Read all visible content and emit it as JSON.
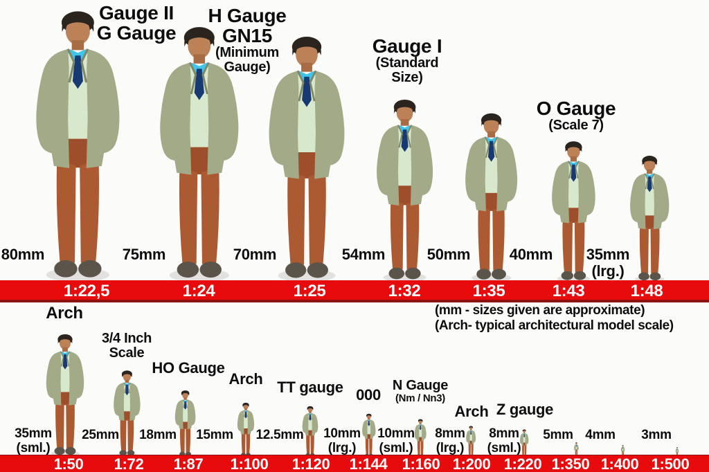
{
  "annotation": {
    "line1": "(mm - sizes given are approximate)",
    "line2": "(Arch- typical architectural model scale)"
  },
  "colors": {
    "bar_red": "#e70b0d",
    "bar_red_dark": "#8f1212",
    "figure": {
      "skin": "#bd8157",
      "skin_shade": "#a76c44",
      "hair": "#2b241e",
      "shirt": "#41c4ea",
      "tie": "#173a72",
      "vest": "#d8e8cd",
      "jacket": "#a3aa87",
      "jacket_shade": "#7f8766",
      "trousers": "#ac5a31",
      "trousers_dark": "#9d4e2b",
      "shoes": "#5a544a"
    }
  },
  "rows": [
    {
      "name": "large scales",
      "figures": [
        {
          "gauge_label": [
            "Gauge II",
            "G Gauge"
          ],
          "size_label": "80mm",
          "ratio": "1:22,5"
        },
        {
          "gauge_label": [
            "H Gauge",
            "GN15"
          ],
          "gauge_sub": [
            "(Minimum",
            "Gauge)"
          ],
          "size_label": "75mm",
          "ratio": "1:24"
        },
        {
          "size_label": "70mm",
          "ratio": "1:25"
        },
        {
          "gauge_label": [
            "Gauge I"
          ],
          "gauge_sub": [
            "(Standard",
            "Size)"
          ],
          "size_label": "54mm",
          "ratio": "1:32"
        },
        {
          "size_label": "50mm",
          "ratio": "1:35"
        },
        {
          "gauge_label": [
            "O Gauge"
          ],
          "gauge_sub": [
            "(Scale 7)"
          ],
          "size_label": "40mm",
          "ratio": "1:43"
        },
        {
          "size_label": "35mm",
          "size_note": "(lrg.)",
          "ratio": "1:48"
        }
      ]
    },
    {
      "name": "small scales",
      "figures": [
        {
          "gauge_label": [
            "Arch"
          ],
          "size_label": "35mm",
          "size_note": "(sml.)",
          "ratio": "1:50"
        },
        {
          "gauge_label": [
            "3/4 Inch",
            "Scale"
          ],
          "size_label": "25mm",
          "ratio": "1:72"
        },
        {
          "gauge_label": [
            "HO Gauge"
          ],
          "size_label": "18mm",
          "ratio": "1:87"
        },
        {
          "gauge_label": [
            "Arch"
          ],
          "size_label": "15mm",
          "ratio": "1:100"
        },
        {
          "gauge_label": [
            "TT gauge"
          ],
          "size_label": "12.5mm",
          "ratio": "1:120"
        },
        {
          "gauge_label": [
            "000"
          ],
          "size_label": "10mm",
          "size_note": "(lrg.)",
          "ratio": "1:144"
        },
        {
          "gauge_label": [
            "N Gauge"
          ],
          "gauge_sub": [
            "(Nm / Nn3)"
          ],
          "size_label": "10mm",
          "size_note": "(sml.)",
          "ratio": "1:160"
        },
        {
          "gauge_label": [
            "Arch"
          ],
          "size_label": "8mm",
          "size_note": "(lrg.)",
          "ratio": "1:200"
        },
        {
          "gauge_label": [
            "Z gauge"
          ],
          "size_label": "8mm",
          "size_note": "(sml.)",
          "ratio": "1:220"
        },
        {
          "size_label": "5mm",
          "ratio": "1:350"
        },
        {
          "size_label": "4mm",
          "ratio": "1:400"
        },
        {
          "size_label": "3mm",
          "ratio": "1:500"
        }
      ]
    }
  ]
}
